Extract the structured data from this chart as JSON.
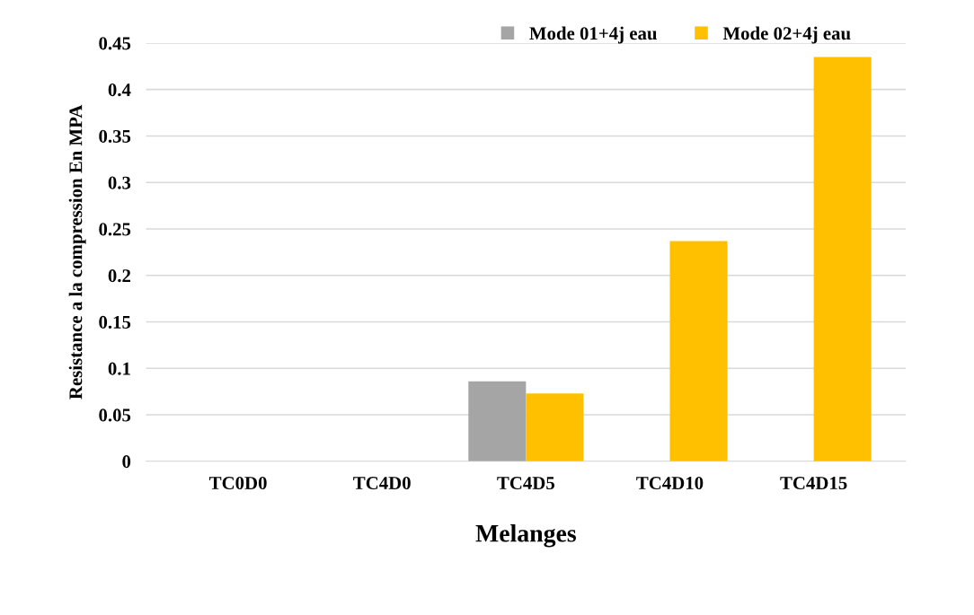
{
  "chart_data": {
    "type": "bar",
    "xlabel": "Melanges",
    "ylabel": "Resistance a la compression En MPA",
    "categories": [
      "TC0D0",
      "TC4D0",
      "TC4D5",
      "TC4D10",
      "TC4D15"
    ],
    "series": [
      {
        "name": "Mode 01+4j eau",
        "color": "#a5a5a5",
        "values": [
          0,
          0,
          0.086,
          0,
          0
        ]
      },
      {
        "name": "Mode 02+4j eau",
        "color": "#ffc000",
        "values": [
          0,
          0,
          0.073,
          0.237,
          0.435
        ]
      }
    ],
    "ylim": [
      0,
      0.45
    ],
    "yticks": [
      0,
      0.05,
      0.1,
      0.15,
      0.2,
      0.25,
      0.3,
      0.35,
      0.4,
      0.45
    ],
    "grid": "y",
    "legend": "top right"
  }
}
